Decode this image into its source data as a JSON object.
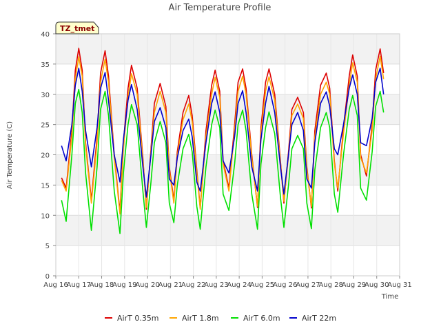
{
  "chart_data": {
    "type": "line",
    "title": "Air Temperature Profile",
    "badge": "TZ_tmet",
    "xlabel": "Time",
    "ylabel": "Air Temperature (C)",
    "ylim": [
      0,
      40
    ],
    "xlim": [
      16,
      31
    ],
    "y_ticks": [
      0,
      5,
      10,
      15,
      20,
      25,
      30,
      35,
      40
    ],
    "x_ticks": [
      {
        "v": 16,
        "label": "Aug 16"
      },
      {
        "v": 17,
        "label": "Aug 17"
      },
      {
        "v": 18,
        "label": "Aug 18"
      },
      {
        "v": 19,
        "label": "Aug 19"
      },
      {
        "v": 20,
        "label": "Aug 20"
      },
      {
        "v": 21,
        "label": "Aug 21"
      },
      {
        "v": 22,
        "label": "Aug 22"
      },
      {
        "v": 23,
        "label": "Aug 23"
      },
      {
        "v": 24,
        "label": "Aug 24"
      },
      {
        "v": 25,
        "label": "Aug 25"
      },
      {
        "v": 26,
        "label": "Aug 26"
      },
      {
        "v": 27,
        "label": "Aug 27"
      },
      {
        "v": 28,
        "label": "Aug 28"
      },
      {
        "v": 29,
        "label": "Aug 29"
      },
      {
        "v": 30,
        "label": "Aug 30"
      },
      {
        "v": 31,
        "label": "Aug 31"
      }
    ],
    "grid": true,
    "legend_position": "bottom",
    "series": [
      {
        "name": "AirT 0.35m",
        "color": "#dd0000",
        "x": [
          16.25,
          16.45,
          16.7,
          16.85,
          17.0,
          17.15,
          17.3,
          17.55,
          17.8,
          17.95,
          18.15,
          18.3,
          18.55,
          18.8,
          18.95,
          19.15,
          19.3,
          19.55,
          19.8,
          19.95,
          20.15,
          20.3,
          20.55,
          20.8,
          20.95,
          21.15,
          21.3,
          21.55,
          21.8,
          21.95,
          22.15,
          22.3,
          22.55,
          22.8,
          22.95,
          23.15,
          23.3,
          23.55,
          23.8,
          23.95,
          24.15,
          24.3,
          24.55,
          24.8,
          24.95,
          25.15,
          25.3,
          25.55,
          25.8,
          25.95,
          26.15,
          26.3,
          26.55,
          26.8,
          26.95,
          27.15,
          27.3,
          27.55,
          27.8,
          27.95,
          28.15,
          28.3,
          28.55,
          28.8,
          28.95,
          29.15,
          29.3,
          29.55,
          29.8,
          29.95,
          30.15,
          30.3
        ],
        "values": [
          16.2,
          14.5,
          24.0,
          34.0,
          37.6,
          34.0,
          22.0,
          12.5,
          23.0,
          33.5,
          37.2,
          33.0,
          20.0,
          10.6,
          22.0,
          31.0,
          34.8,
          31.0,
          19.5,
          11.0,
          21.0,
          28.5,
          31.8,
          28.0,
          18.0,
          12.5,
          20.5,
          27.0,
          29.8,
          26.5,
          17.5,
          11.2,
          24.0,
          31.5,
          34.0,
          30.5,
          19.0,
          14.5,
          25.0,
          32.0,
          34.2,
          31.0,
          20.0,
          11.3,
          24.5,
          32.0,
          34.2,
          30.0,
          19.0,
          12.0,
          20.5,
          27.5,
          29.5,
          27.0,
          18.0,
          11.2,
          24.0,
          31.5,
          33.5,
          31.0,
          19.0,
          14.0,
          24.5,
          33.0,
          36.5,
          33.0,
          20.0,
          16.5,
          25.0,
          34.0,
          37.5,
          33.5
        ]
      },
      {
        "name": "AirT 1.8m",
        "color": "#ffa500",
        "x": [
          16.25,
          16.45,
          16.7,
          16.85,
          17.0,
          17.15,
          17.3,
          17.55,
          17.8,
          17.95,
          18.15,
          18.3,
          18.55,
          18.8,
          18.95,
          19.15,
          19.3,
          19.55,
          19.8,
          19.95,
          20.15,
          20.3,
          20.55,
          20.8,
          20.95,
          21.15,
          21.3,
          21.55,
          21.8,
          21.95,
          22.15,
          22.3,
          22.55,
          22.8,
          22.95,
          23.15,
          23.3,
          23.55,
          23.8,
          23.95,
          24.15,
          24.3,
          24.55,
          24.8,
          24.95,
          25.15,
          25.3,
          25.55,
          25.8,
          25.95,
          26.15,
          26.3,
          26.55,
          26.8,
          26.95,
          27.15,
          27.3,
          27.55,
          27.8,
          27.95,
          28.15,
          28.3,
          28.55,
          28.8,
          28.95,
          29.15,
          29.3,
          29.55,
          29.8,
          29.95,
          30.15,
          30.3
        ],
        "values": [
          15.8,
          14.0,
          23.0,
          32.5,
          36.2,
          33.0,
          21.5,
          12.0,
          22.0,
          32.0,
          35.8,
          32.0,
          19.5,
          10.2,
          21.0,
          29.5,
          33.4,
          30.0,
          19.0,
          11.3,
          20.5,
          27.0,
          30.5,
          27.0,
          17.5,
          12.0,
          19.8,
          25.8,
          28.4,
          25.5,
          17.0,
          11.0,
          23.0,
          30.0,
          32.8,
          29.5,
          18.5,
          14.0,
          24.0,
          30.5,
          33.0,
          30.0,
          19.5,
          11.5,
          23.5,
          30.5,
          32.9,
          29.0,
          18.5,
          12.3,
          19.8,
          26.5,
          28.4,
          26.0,
          17.5,
          11.5,
          23.0,
          30.0,
          32.0,
          30.0,
          18.5,
          14.5,
          23.5,
          31.5,
          35.2,
          32.0,
          19.5,
          17.0,
          24.0,
          32.5,
          36.3,
          32.5
        ]
      },
      {
        "name": "AirT 6.0m",
        "color": "#00e000",
        "x": [
          16.25,
          16.45,
          16.7,
          16.85,
          17.0,
          17.15,
          17.3,
          17.55,
          17.8,
          17.95,
          18.15,
          18.3,
          18.55,
          18.8,
          18.95,
          19.15,
          19.3,
          19.55,
          19.8,
          19.95,
          20.15,
          20.3,
          20.55,
          20.8,
          20.95,
          21.15,
          21.3,
          21.55,
          21.8,
          21.95,
          22.15,
          22.3,
          22.55,
          22.8,
          22.95,
          23.15,
          23.3,
          23.55,
          23.8,
          23.95,
          24.15,
          24.3,
          24.55,
          24.8,
          24.95,
          25.15,
          25.3,
          25.55,
          25.8,
          25.95,
          26.15,
          26.3,
          26.55,
          26.8,
          26.95,
          27.15,
          27.3,
          27.55,
          27.8,
          27.95,
          28.15,
          28.3,
          28.55,
          28.8,
          28.95,
          29.15,
          29.3,
          29.55,
          29.8,
          29.95,
          30.15,
          30.3
        ],
        "values": [
          12.5,
          9.0,
          20.0,
          28.5,
          30.8,
          27.0,
          17.0,
          7.5,
          18.0,
          27.5,
          30.5,
          26.5,
          14.0,
          7.0,
          17.0,
          25.0,
          28.3,
          25.0,
          14.0,
          8.0,
          15.5,
          22.0,
          25.5,
          22.0,
          12.0,
          8.8,
          15.0,
          21.0,
          23.4,
          20.5,
          11.5,
          7.7,
          18.0,
          25.0,
          27.4,
          24.5,
          13.5,
          10.8,
          18.5,
          25.0,
          27.4,
          24.0,
          13.5,
          7.7,
          18.5,
          24.5,
          27.1,
          23.5,
          13.0,
          8.0,
          15.0,
          21.0,
          23.2,
          21.0,
          12.0,
          7.8,
          17.5,
          24.5,
          27.0,
          24.5,
          13.5,
          10.5,
          20.0,
          27.5,
          29.8,
          26.5,
          14.5,
          12.5,
          20.5,
          28.0,
          30.5,
          27.0
        ]
      },
      {
        "name": "AirT 22m",
        "color": "#0000cc",
        "x": [
          16.25,
          16.45,
          16.7,
          16.85,
          17.0,
          17.15,
          17.3,
          17.55,
          17.8,
          17.95,
          18.15,
          18.3,
          18.55,
          18.8,
          18.95,
          19.15,
          19.3,
          19.55,
          19.8,
          19.95,
          20.15,
          20.3,
          20.55,
          20.8,
          20.95,
          21.15,
          21.3,
          21.55,
          21.8,
          21.95,
          22.15,
          22.3,
          22.55,
          22.8,
          22.95,
          23.15,
          23.3,
          23.55,
          23.8,
          23.95,
          24.15,
          24.3,
          24.55,
          24.8,
          24.95,
          25.15,
          25.3,
          25.55,
          25.8,
          25.95,
          26.15,
          26.3,
          26.55,
          26.8,
          26.95,
          27.15,
          27.3,
          27.55,
          27.8,
          27.95,
          28.15,
          28.3,
          28.55,
          28.8,
          28.95,
          29.15,
          29.3,
          29.55,
          29.8,
          29.95,
          30.15,
          30.3
        ],
        "values": [
          21.5,
          19.0,
          25.0,
          31.5,
          34.3,
          30.5,
          24.0,
          18.0,
          24.5,
          31.0,
          33.6,
          29.0,
          20.0,
          15.5,
          22.5,
          29.0,
          31.6,
          27.5,
          18.0,
          13.0,
          20.0,
          25.5,
          27.8,
          24.5,
          16.0,
          15.0,
          19.5,
          24.0,
          25.9,
          23.0,
          15.5,
          14.0,
          22.0,
          28.5,
          30.4,
          27.0,
          19.0,
          17.0,
          23.0,
          28.5,
          30.6,
          27.0,
          18.0,
          14.0,
          22.5,
          28.5,
          31.3,
          27.0,
          18.0,
          13.5,
          20.0,
          25.0,
          27.0,
          24.0,
          16.0,
          14.5,
          22.0,
          28.5,
          30.4,
          28.0,
          21.0,
          20.0,
          25.0,
          31.0,
          33.2,
          30.0,
          22.0,
          21.5,
          26.0,
          32.0,
          34.3,
          30.0
        ]
      }
    ]
  }
}
